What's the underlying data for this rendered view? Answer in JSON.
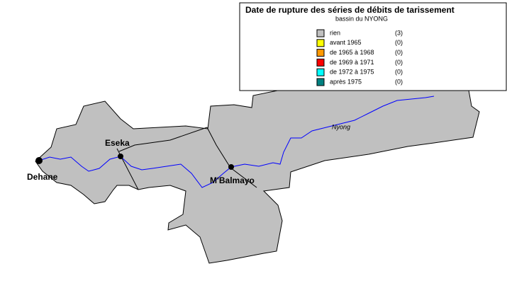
{
  "legend": {
    "title": "Date de rupture des séries de débits de tarissement",
    "subtitle": "bassin du NYONG",
    "entries": [
      {
        "label": "rien",
        "count": "(3)",
        "color": "#c0c0c0"
      },
      {
        "label": "avant 1965",
        "count": "(0)",
        "color": "#ffff00"
      },
      {
        "label": "de 1965 à 1968",
        "count": "(0)",
        "color": "#ff9900"
      },
      {
        "label": "de 1969 à 1971",
        "count": "(0)",
        "color": "#ff0000"
      },
      {
        "label": "de 1972 à 1975",
        "count": "(0)",
        "color": "#00ffff"
      },
      {
        "label": "après 1975",
        "count": "(0)",
        "color": "#008080"
      }
    ]
  },
  "map": {
    "river": "Nyong",
    "stations": [
      "Dehane",
      "Eseka",
      "M'Balmayo"
    ]
  }
}
